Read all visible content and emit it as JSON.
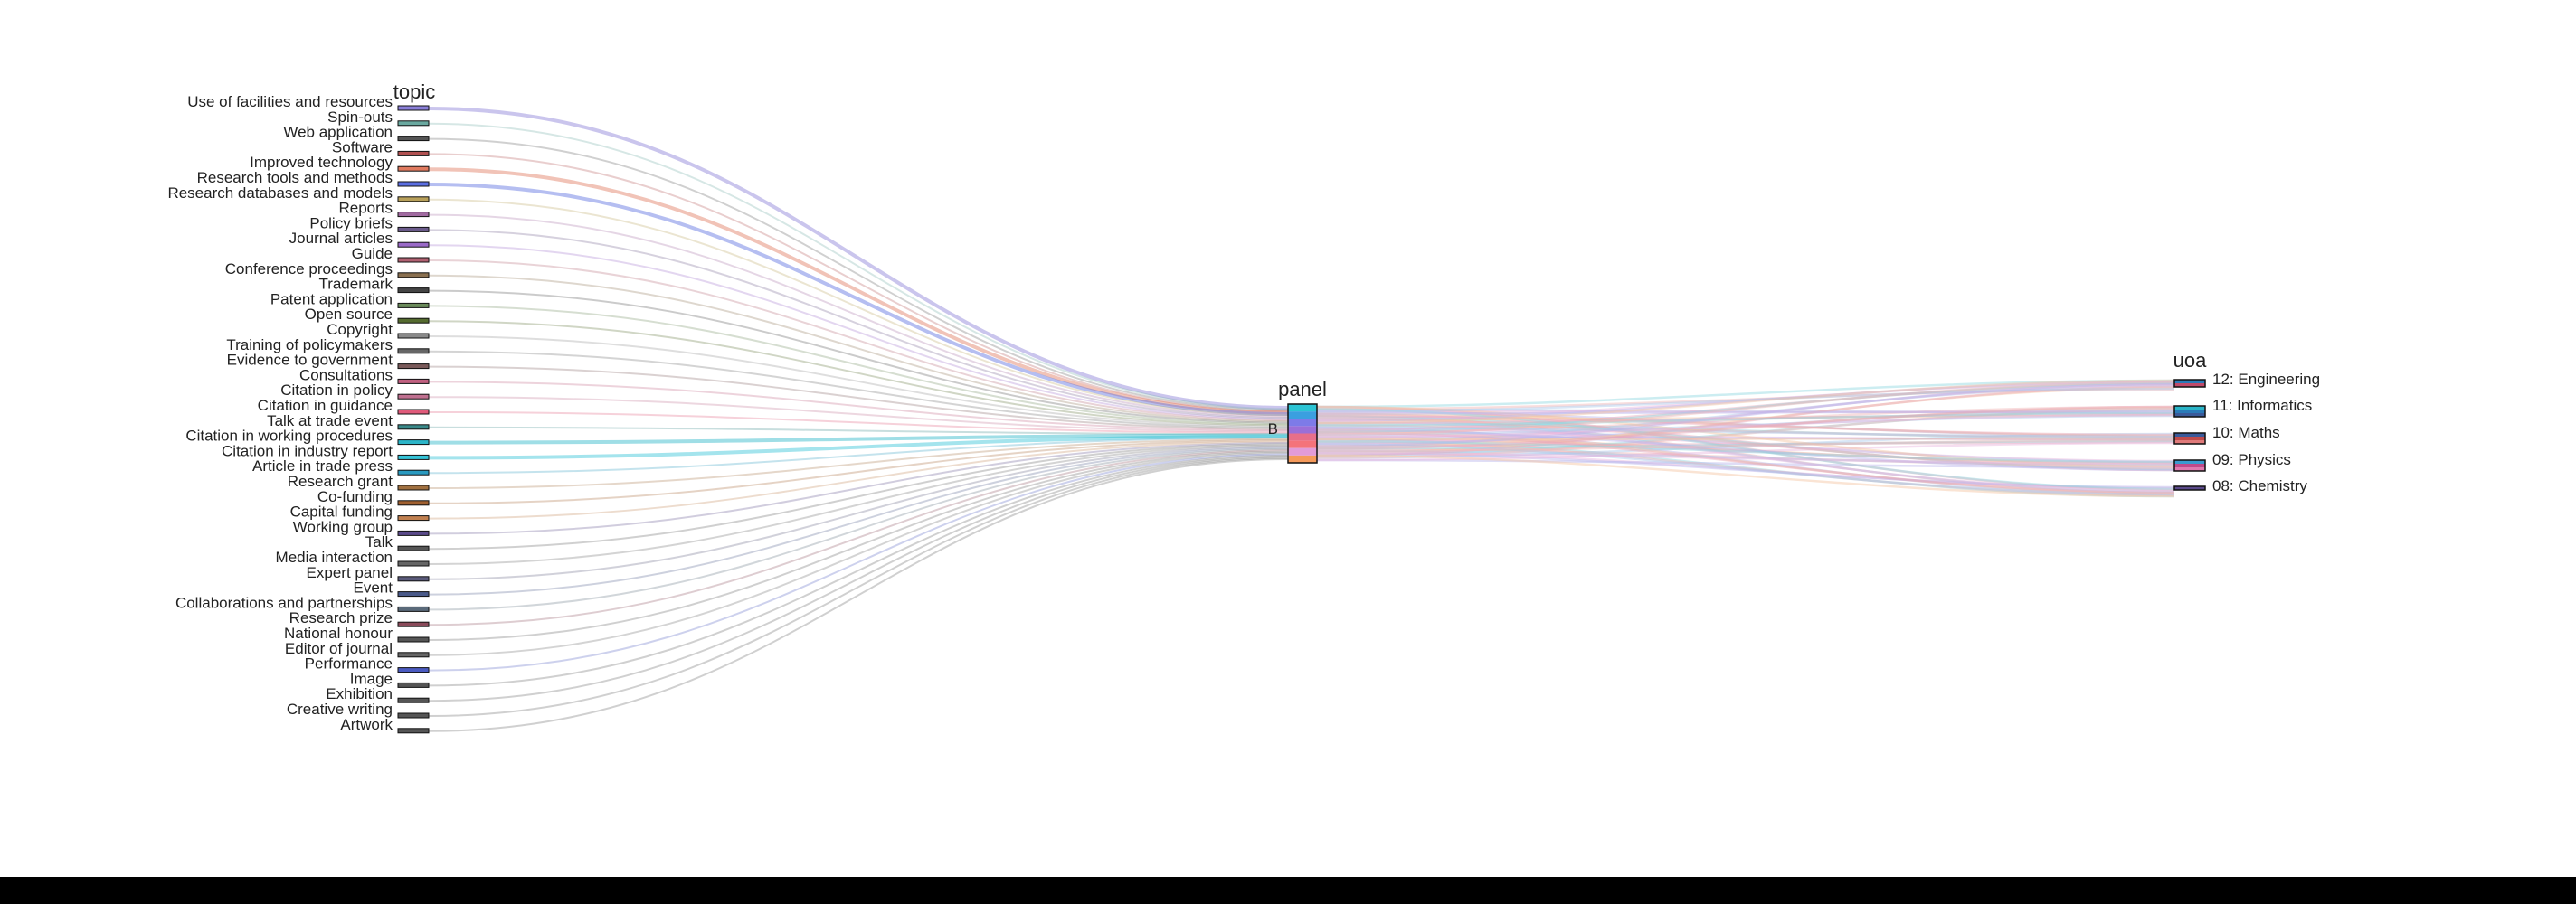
{
  "axes": {
    "left_title": "topic",
    "middle_title": "panel",
    "right_title": "uoa"
  },
  "panel": {
    "label": "B",
    "segment_colors": [
      "#2bc4d4",
      "#3b9fe0",
      "#7d7be8",
      "#9b6fd8",
      "#e86f8a",
      "#f4737a",
      "#e29bd8",
      "#f59a5b"
    ]
  },
  "topics": [
    {
      "label": "Use of facilities and resources",
      "color": "#8a7fd8"
    },
    {
      "label": "Spin-outs",
      "color": "#6aa9a0"
    },
    {
      "label": "Web application",
      "color": "#555555"
    },
    {
      "label": "Software",
      "color": "#b05050"
    },
    {
      "label": "Improved technology",
      "color": "#e07a5f"
    },
    {
      "label": "Research tools and methods",
      "color": "#5b6ee1"
    },
    {
      "label": "Research databases and models",
      "color": "#b8a05a"
    },
    {
      "label": "Reports",
      "color": "#a06aa0"
    },
    {
      "label": "Policy briefs",
      "color": "#6a5a8a"
    },
    {
      "label": "Journal articles",
      "color": "#9a6ac8"
    },
    {
      "label": "Guide",
      "color": "#b06070"
    },
    {
      "label": "Conference proceedings",
      "color": "#8a7050"
    },
    {
      "label": "Trademark",
      "color": "#444444"
    },
    {
      "label": "Patent application",
      "color": "#6a8a5a"
    },
    {
      "label": "Open source",
      "color": "#556b2f"
    },
    {
      "label": "Copyright",
      "color": "#8a8a8a"
    },
    {
      "label": "Training of policymakers",
      "color": "#666666"
    },
    {
      "label": "Evidence to government",
      "color": "#7a5a5a"
    },
    {
      "label": "Consultations",
      "color": "#c06080"
    },
    {
      "label": "Citation in policy",
      "color": "#c07090"
    },
    {
      "label": "Citation in guidance",
      "color": "#e05a7a"
    },
    {
      "label": "Talk at trade event",
      "color": "#3a8a8a"
    },
    {
      "label": "Citation in working procedures",
      "color": "#2bb5c8"
    },
    {
      "label": "Citation in industry report",
      "color": "#35c4d8"
    },
    {
      "label": "Article in trade press",
      "color": "#2a9ac0"
    },
    {
      "label": "Research grant",
      "color": "#a07040"
    },
    {
      "label": "Co-funding",
      "color": "#a06030"
    },
    {
      "label": "Capital funding",
      "color": "#c08050"
    },
    {
      "label": "Working group",
      "color": "#5a4a8a"
    },
    {
      "label": "Talk",
      "color": "#555555"
    },
    {
      "label": "Media interaction",
      "color": "#666666"
    },
    {
      "label": "Expert panel",
      "color": "#5a5a7a"
    },
    {
      "label": "Event",
      "color": "#4a5a8a"
    },
    {
      "label": "Collaborations and partnerships",
      "color": "#5a6a7a"
    },
    {
      "label": "Research prize",
      "color": "#8a4a5a"
    },
    {
      "label": "National honour",
      "color": "#555555"
    },
    {
      "label": "Editor of journal",
      "color": "#666666"
    },
    {
      "label": "Performance",
      "color": "#4a5ac0"
    },
    {
      "label": "Image",
      "color": "#555555"
    },
    {
      "label": "Exhibition",
      "color": "#555555"
    },
    {
      "label": "Creative writing",
      "color": "#555555"
    },
    {
      "label": "Artwork",
      "color": "#555555"
    }
  ],
  "uoas": [
    {
      "label": "12: Engineering",
      "colors": [
        "#2a7ab8",
        "#c04a6a"
      ]
    },
    {
      "label": "11: Informatics",
      "colors": [
        "#2ab5c8",
        "#2a7ab8",
        "#3a5a9a"
      ]
    },
    {
      "label": "10: Maths",
      "colors": [
        "#3a5a9a",
        "#c04a4a",
        "#e07a7a"
      ]
    },
    {
      "label": "09: Physics",
      "colors": [
        "#3a9ad0",
        "#c04a8a",
        "#e07ab0"
      ]
    },
    {
      "label": "08: Chemistry",
      "colors": [
        "#5a4a8a"
      ]
    }
  ]
}
